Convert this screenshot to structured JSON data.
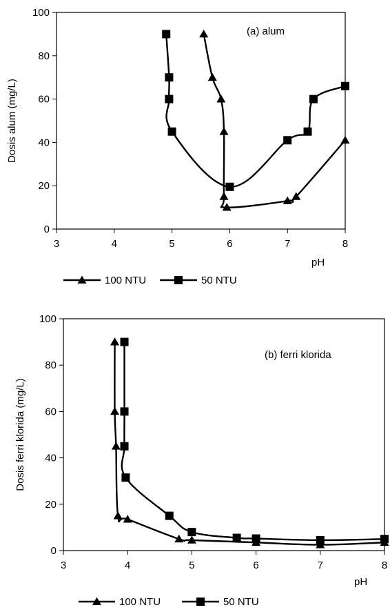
{
  "chart_data": [
    {
      "type": "line",
      "annotation": "(a) alum",
      "xlabel": "pH",
      "ylabel": "Dosis alum (mg/L)",
      "xlim": [
        3,
        8
      ],
      "ylim": [
        0,
        100
      ],
      "xticks": [
        "3",
        "4",
        "5",
        "6",
        "7",
        "8"
      ],
      "yticks": [
        "0",
        "20",
        "40",
        "60",
        "80",
        "100"
      ],
      "grid": false,
      "legend": "bottom",
      "series": [
        {
          "name": "100 NTU",
          "marker": "triangle",
          "x": [
            5.55,
            5.7,
            5.85,
            5.9,
            5.9,
            5.95,
            7.0,
            7.15,
            8.0
          ],
          "y": [
            90,
            70,
            60,
            45,
            15,
            10,
            13,
            15,
            41
          ]
        },
        {
          "name": "50 NTU",
          "marker": "square",
          "x": [
            4.9,
            4.95,
            4.95,
            5.0,
            6.0,
            7.0,
            7.35,
            7.45,
            8.0
          ],
          "y": [
            90,
            70,
            60,
            45,
            19.5,
            41,
            45,
            60,
            66
          ]
        }
      ]
    },
    {
      "type": "line",
      "annotation": "(b) ferri klorida",
      "xlabel": "pH",
      "ylabel": "Dosis ferri klorida (mg/L)",
      "xlim": [
        3,
        8
      ],
      "ylim": [
        0,
        100
      ],
      "xticks": [
        "3",
        "4",
        "5",
        "6",
        "7",
        "8"
      ],
      "yticks": [
        "0",
        "20",
        "40",
        "60",
        "80",
        "100"
      ],
      "grid": false,
      "legend": "bottom",
      "series": [
        {
          "name": "100 NTU",
          "marker": "triangle",
          "x": [
            3.8,
            3.8,
            3.82,
            3.85,
            4.0,
            4.8,
            5.0,
            6.0,
            7.0,
            8.0
          ],
          "y": [
            90,
            60,
            45,
            15,
            13.5,
            5,
            4.5,
            3.5,
            2.5,
            3.5
          ]
        },
        {
          "name": "50 NTU",
          "marker": "square",
          "x": [
            3.95,
            3.95,
            3.95,
            3.97,
            4.65,
            5.0,
            5.7,
            6.0,
            7.0,
            8.0
          ],
          "y": [
            90,
            60,
            45,
            31.5,
            15,
            8,
            5.5,
            5.2,
            4.5,
            5
          ]
        }
      ]
    }
  ]
}
